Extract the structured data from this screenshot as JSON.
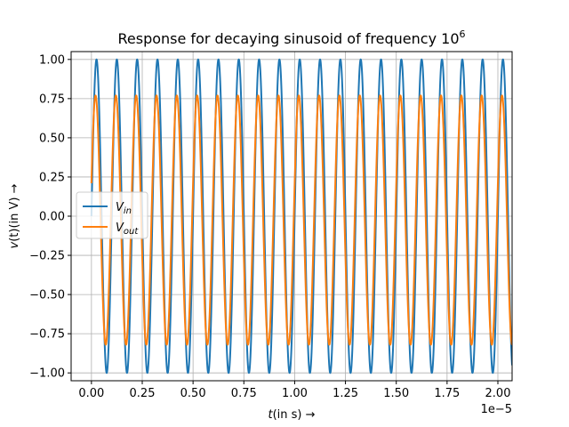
{
  "chart_data": {
    "type": "line",
    "title": "Response for decaying sinusoid of frequency 10",
    "title_superscript": "6",
    "xlabel_main": "t",
    "xlabel_rest": "(in s) →",
    "ylabel_main": "v",
    "ylabel_rest": "(t)(in V) →",
    "x_offset_label": "1e−5",
    "x_scale": 1e-05,
    "xlim": [
      -1e-06,
      2.07e-05
    ],
    "ylim": [
      -1.05,
      1.05
    ],
    "xticks": [
      0.0,
      2.5e-06,
      5e-06,
      7.5e-06,
      1e-05,
      1.25e-05,
      1.5e-05,
      1.75e-05,
      2e-05
    ],
    "xtick_labels": [
      "0.00",
      "0.25",
      "0.50",
      "0.75",
      "1.00",
      "1.25",
      "1.50",
      "1.75",
      "2.00"
    ],
    "yticks": [
      1.0,
      0.75,
      0.5,
      0.25,
      0.0,
      -0.25,
      -0.5,
      -0.75,
      -1.0
    ],
    "ytick_labels": [
      "1.00",
      "0.75",
      "0.50",
      "0.25",
      "0.00",
      "−0.25",
      "−0.50",
      "−0.75",
      "−1.00"
    ],
    "grid": true,
    "legend_placement": "center-left",
    "series": [
      {
        "name_main": "V",
        "name_sub": "in",
        "color": "#1f77b4",
        "frequency_hz": 1000000,
        "amplitude": 1.0,
        "phase_rad": 0.0,
        "x_start": 0.0,
        "x_end": 2.07e-05,
        "y_range": [
          -1.0,
          1.0
        ]
      },
      {
        "name_main": "V",
        "name_sub": "out",
        "color": "#ff7f0e",
        "frequency_hz": 1000000,
        "amplitude": 0.8,
        "phase_rad": 0.3,
        "peak": 0.77,
        "trough": -0.82,
        "x_start": 0.0,
        "x_end": 2.07e-05,
        "y_range": [
          -0.82,
          0.77
        ]
      }
    ]
  }
}
